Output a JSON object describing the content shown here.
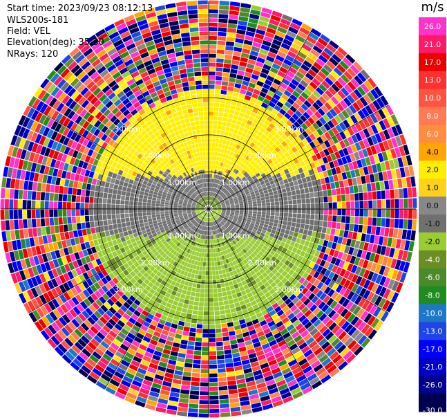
{
  "header": {
    "start_time": "Start time: 2023/09/23 08:12:13",
    "instrument": "WLS200s-181",
    "field": "Field: VEL",
    "elevation": "Elevation(deg): 35.30",
    "nrays": "NRays: 120"
  },
  "chart_data": {
    "type": "ppi_polar_heatmap",
    "field": "VEL",
    "units": "m/s",
    "range_ring_labels": [
      "1.00km",
      "2.00km",
      "3.00km"
    ],
    "range_rings_km": [
      1.0,
      2.0,
      3.0
    ],
    "max_range_km": 5.6,
    "rays": 120,
    "spokes_deg": [
      0,
      30,
      60,
      90,
      120,
      150,
      180,
      210,
      240,
      270,
      300,
      330
    ],
    "colorbar": {
      "unit": "m/s",
      "tick_labels": [
        "26.0",
        "21.0",
        "17.0",
        "13.0",
        "10.0",
        "8.0",
        "6.0",
        "4.0",
        "2.0",
        "1.0",
        "0.0",
        "-1.0",
        "-2.0",
        "-4.0",
        "-6.0",
        "-8.0",
        "-10.0",
        "-13.0",
        "-17.0",
        "-21.0",
        "-26.0",
        "-30.0"
      ],
      "bins": [
        {
          "lo": 26,
          "hi": 30,
          "color": "#ff33cc"
        },
        {
          "lo": 21,
          "hi": 26,
          "color": "#ff1a66"
        },
        {
          "lo": 17,
          "hi": 21,
          "color": "#ee0000"
        },
        {
          "lo": 13,
          "hi": 17,
          "color": "#ff3030"
        },
        {
          "lo": 10,
          "hi": 13,
          "color": "#ff5540"
        },
        {
          "lo": 8,
          "hi": 10,
          "color": "#ff7a55"
        },
        {
          "lo": 6,
          "hi": 8,
          "color": "#ff8c40"
        },
        {
          "lo": 4,
          "hi": 6,
          "color": "#ffa600"
        },
        {
          "lo": 2,
          "hi": 4,
          "color": "#ffee00"
        },
        {
          "lo": 1,
          "hi": 2,
          "color": "#ffd21a"
        },
        {
          "lo": 0,
          "hi": 1,
          "color": "#888888"
        },
        {
          "lo": -1,
          "hi": 0,
          "color": "#707070"
        },
        {
          "lo": -2,
          "hi": -1,
          "color": "#9acd32"
        },
        {
          "lo": -4,
          "hi": -2,
          "color": "#6b8e23"
        },
        {
          "lo": -6,
          "hi": -4,
          "color": "#4b8a2b"
        },
        {
          "lo": -8,
          "hi": -6,
          "color": "#1e8c1e"
        },
        {
          "lo": -10,
          "hi": -8,
          "color": "#1e78c8"
        },
        {
          "lo": -13,
          "hi": -10,
          "color": "#1e46e6"
        },
        {
          "lo": -17,
          "hi": -13,
          "color": "#0000ff"
        },
        {
          "lo": -21,
          "hi": -17,
          "color": "#0000c8"
        },
        {
          "lo": -26,
          "hi": -21,
          "color": "#00008c"
        },
        {
          "lo": -30,
          "hi": -26,
          "color": "#000050"
        }
      ]
    },
    "regions": [
      {
        "r_km_from": 0.0,
        "r_km_to": 0.25,
        "description": "no data / mixed center",
        "upper_value": -2.5,
        "lower_value": -1.5
      },
      {
        "r_km_from": 0.25,
        "r_km_to": 3.2,
        "upper_sector_value": 3.0,
        "middle_band_value": -0.5,
        "lower_sector_value": -2.5
      },
      {
        "r_km_from": 3.2,
        "r_km_to": 5.6,
        "description": "noise (random velocities)"
      }
    ]
  }
}
